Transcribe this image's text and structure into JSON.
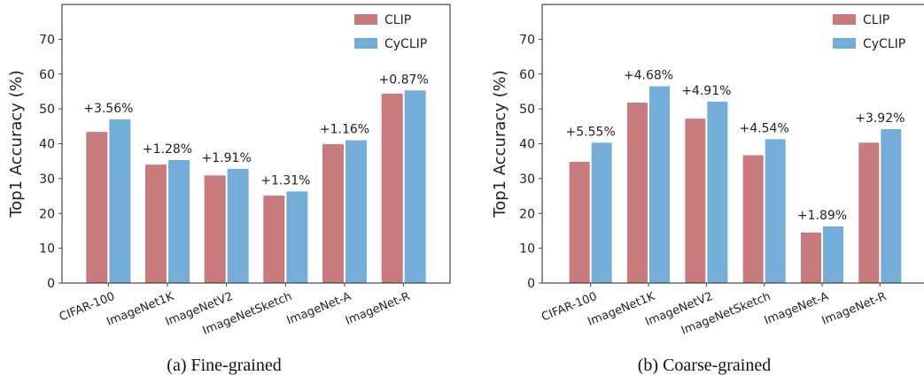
{
  "colors": {
    "clip": "#c97a7c",
    "cyclip": "#74aed8",
    "axis": "#444444"
  },
  "chart_data": [
    {
      "type": "bar",
      "ylabel": "Top1 Accuracy (%)",
      "ylim": [
        0,
        80
      ],
      "yticks": [
        0,
        10,
        20,
        30,
        40,
        50,
        60,
        70
      ],
      "categories": [
        "CIFAR-100",
        "ImageNet1K",
        "ImageNetV2",
        "ImageNetSketch",
        "ImageNet-A",
        "ImageNet-R"
      ],
      "series": [
        {
          "name": "CLIP",
          "values": [
            43.4,
            34.0,
            30.9,
            25.1,
            39.9,
            54.4
          ]
        },
        {
          "name": "CyCLIP",
          "values": [
            47.0,
            35.3,
            32.8,
            26.3,
            41.0,
            55.3
          ]
        }
      ],
      "annotations": [
        "+3.56%",
        "+1.28%",
        "+1.91%",
        "+1.31%",
        "+1.16%",
        "+0.87%"
      ],
      "legend": "top-right",
      "caption": "(a) Fine-grained"
    },
    {
      "type": "bar",
      "ylabel": "Top1 Accuracy (%)",
      "ylim": [
        0,
        80
      ],
      "yticks": [
        0,
        10,
        20,
        30,
        40,
        50,
        60,
        70
      ],
      "categories": [
        "CIFAR-100",
        "ImageNet1K",
        "ImageNetV2",
        "ImageNetSketch",
        "ImageNet-A",
        "ImageNet-R"
      ],
      "series": [
        {
          "name": "CLIP",
          "values": [
            34.8,
            51.8,
            47.2,
            36.7,
            14.5,
            40.3
          ]
        },
        {
          "name": "CyCLIP",
          "values": [
            40.3,
            56.5,
            52.1,
            41.3,
            16.3,
            44.2
          ]
        }
      ],
      "annotations": [
        "+5.55%",
        "+4.68%",
        "+4.91%",
        "+4.54%",
        "+1.89%",
        "+3.92%"
      ],
      "legend": "top-right",
      "caption": "(b) Coarse-grained"
    }
  ]
}
